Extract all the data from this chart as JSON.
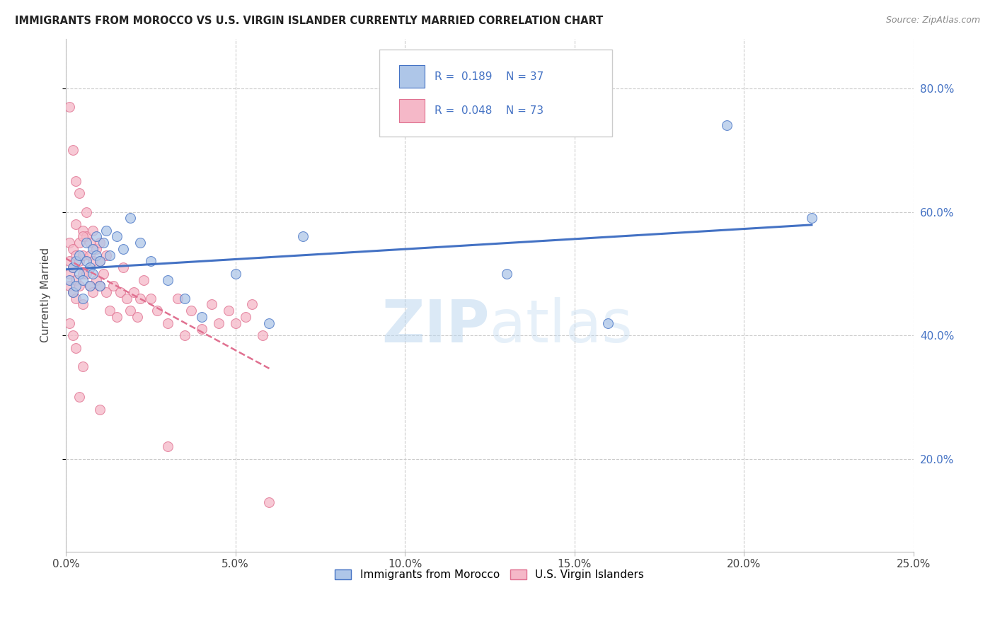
{
  "title": "IMMIGRANTS FROM MOROCCO VS U.S. VIRGIN ISLANDER CURRENTLY MARRIED CORRELATION CHART",
  "source": "Source: ZipAtlas.com",
  "ylabel": "Currently Married",
  "legend_label1": "Immigrants from Morocco",
  "legend_label2": "U.S. Virgin Islanders",
  "R1": "0.189",
  "N1": "37",
  "R2": "0.048",
  "N2": "73",
  "color1": "#aec6e8",
  "color2": "#f5b8c8",
  "line_color1": "#4472c4",
  "line_color2": "#e07090",
  "text_color_RN": "#4472c4",
  "background_color": "#ffffff",
  "grid_color": "#cccccc",
  "watermark": "ZIPatlas",
  "xlim": [
    0.0,
    0.25
  ],
  "ylim": [
    0.05,
    0.88
  ],
  "x_ticks": [
    0.0,
    0.05,
    0.1,
    0.15,
    0.2,
    0.25
  ],
  "x_tick_labels": [
    "0.0%",
    "5.0%",
    "10.0%",
    "15.0%",
    "20.0%",
    "25.0%"
  ],
  "y_ticks": [
    0.2,
    0.4,
    0.6,
    0.8
  ],
  "y_tick_labels": [
    "20.0%",
    "40.0%",
    "60.0%",
    "80.0%"
  ],
  "morocco_x": [
    0.001,
    0.002,
    0.002,
    0.003,
    0.003,
    0.004,
    0.004,
    0.005,
    0.005,
    0.006,
    0.006,
    0.007,
    0.007,
    0.008,
    0.008,
    0.009,
    0.009,
    0.01,
    0.01,
    0.011,
    0.012,
    0.013,
    0.015,
    0.017,
    0.019,
    0.022,
    0.025,
    0.03,
    0.035,
    0.04,
    0.05,
    0.06,
    0.07,
    0.13,
    0.16,
    0.195,
    0.22
  ],
  "morocco_y": [
    0.49,
    0.51,
    0.47,
    0.52,
    0.48,
    0.5,
    0.53,
    0.49,
    0.46,
    0.52,
    0.55,
    0.51,
    0.48,
    0.54,
    0.5,
    0.53,
    0.56,
    0.52,
    0.48,
    0.55,
    0.57,
    0.53,
    0.56,
    0.54,
    0.59,
    0.55,
    0.52,
    0.49,
    0.46,
    0.43,
    0.5,
    0.42,
    0.56,
    0.5,
    0.42,
    0.74,
    0.59
  ],
  "virgin_x": [
    0.001,
    0.001,
    0.001,
    0.001,
    0.002,
    0.002,
    0.002,
    0.003,
    0.003,
    0.003,
    0.003,
    0.004,
    0.004,
    0.004,
    0.005,
    0.005,
    0.005,
    0.005,
    0.006,
    0.006,
    0.006,
    0.007,
    0.007,
    0.007,
    0.008,
    0.008,
    0.008,
    0.009,
    0.009,
    0.01,
    0.01,
    0.01,
    0.011,
    0.012,
    0.012,
    0.013,
    0.014,
    0.015,
    0.016,
    0.017,
    0.018,
    0.019,
    0.02,
    0.021,
    0.022,
    0.023,
    0.025,
    0.027,
    0.03,
    0.033,
    0.035,
    0.037,
    0.04,
    0.043,
    0.045,
    0.048,
    0.05,
    0.053,
    0.055,
    0.058,
    0.001,
    0.002,
    0.003,
    0.004,
    0.005,
    0.001,
    0.002,
    0.003,
    0.004,
    0.005,
    0.01,
    0.03,
    0.06
  ],
  "virgin_y": [
    0.5,
    0.48,
    0.52,
    0.55,
    0.47,
    0.51,
    0.54,
    0.53,
    0.49,
    0.46,
    0.58,
    0.52,
    0.55,
    0.48,
    0.5,
    0.53,
    0.57,
    0.45,
    0.56,
    0.5,
    0.6,
    0.53,
    0.48,
    0.55,
    0.52,
    0.57,
    0.47,
    0.54,
    0.49,
    0.52,
    0.55,
    0.48,
    0.5,
    0.47,
    0.53,
    0.44,
    0.48,
    0.43,
    0.47,
    0.51,
    0.46,
    0.44,
    0.47,
    0.43,
    0.46,
    0.49,
    0.46,
    0.44,
    0.42,
    0.46,
    0.4,
    0.44,
    0.41,
    0.45,
    0.42,
    0.44,
    0.42,
    0.43,
    0.45,
    0.4,
    0.77,
    0.7,
    0.65,
    0.63,
    0.56,
    0.42,
    0.4,
    0.38,
    0.3,
    0.35,
    0.28,
    0.22,
    0.13
  ]
}
